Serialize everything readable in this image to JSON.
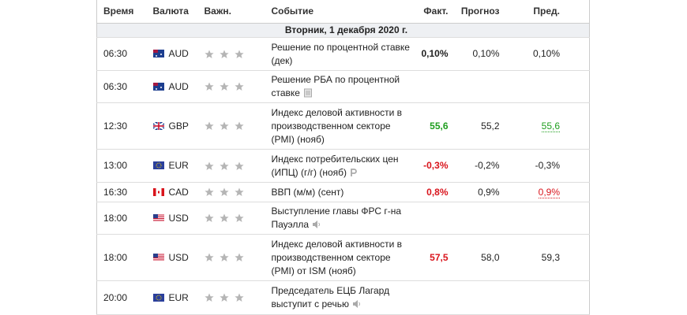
{
  "header": {
    "time": "Время",
    "currency": "Валюта",
    "importance": "Важн.",
    "event": "Событие",
    "actual": "Факт.",
    "forecast": "Прогноз",
    "previous": "Пред."
  },
  "date": "Вторник, 1 декабря 2020 г.",
  "rows": [
    {
      "time": "06:30",
      "currency": "AUD",
      "event": "Решение по процентной ставке (дек)",
      "actual": "0,10%",
      "forecast": "0,10%",
      "previous": "0,10%"
    },
    {
      "time": "06:30",
      "currency": "AUD",
      "event": "Решение РБА по процентной ставке",
      "actual": "",
      "forecast": "",
      "previous": ""
    },
    {
      "time": "12:30",
      "currency": "GBP",
      "event": "Индекс деловой активности в производственном секторе (PMI) (нояб)",
      "actual": "55,6",
      "forecast": "55,2",
      "previous": "55,6"
    },
    {
      "time": "13:00",
      "currency": "EUR",
      "event": "Индекс потребительских цен (ИПЦ) (г/г) (нояб)",
      "actual": "-0,3%",
      "forecast": "-0,2%",
      "previous": "-0,3%"
    },
    {
      "time": "16:30",
      "currency": "CAD",
      "event": "ВВП (м/м) (сент)",
      "actual": "0,8%",
      "forecast": "0,9%",
      "previous": "0,9%"
    },
    {
      "time": "18:00",
      "currency": "USD",
      "event": "Выступление главы ФРС г-на Пауэлла",
      "actual": "",
      "forecast": "",
      "previous": ""
    },
    {
      "time": "18:00",
      "currency": "USD",
      "event": "Индекс деловой активности в производственном секторе (PMI) от ISM (нояб)",
      "actual": "57,5",
      "forecast": "58,0",
      "previous": "59,3"
    },
    {
      "time": "20:00",
      "currency": "EUR",
      "event": "Председатель ЕЦБ Лагард выступит с речью",
      "actual": "",
      "forecast": "",
      "previous": ""
    }
  ]
}
